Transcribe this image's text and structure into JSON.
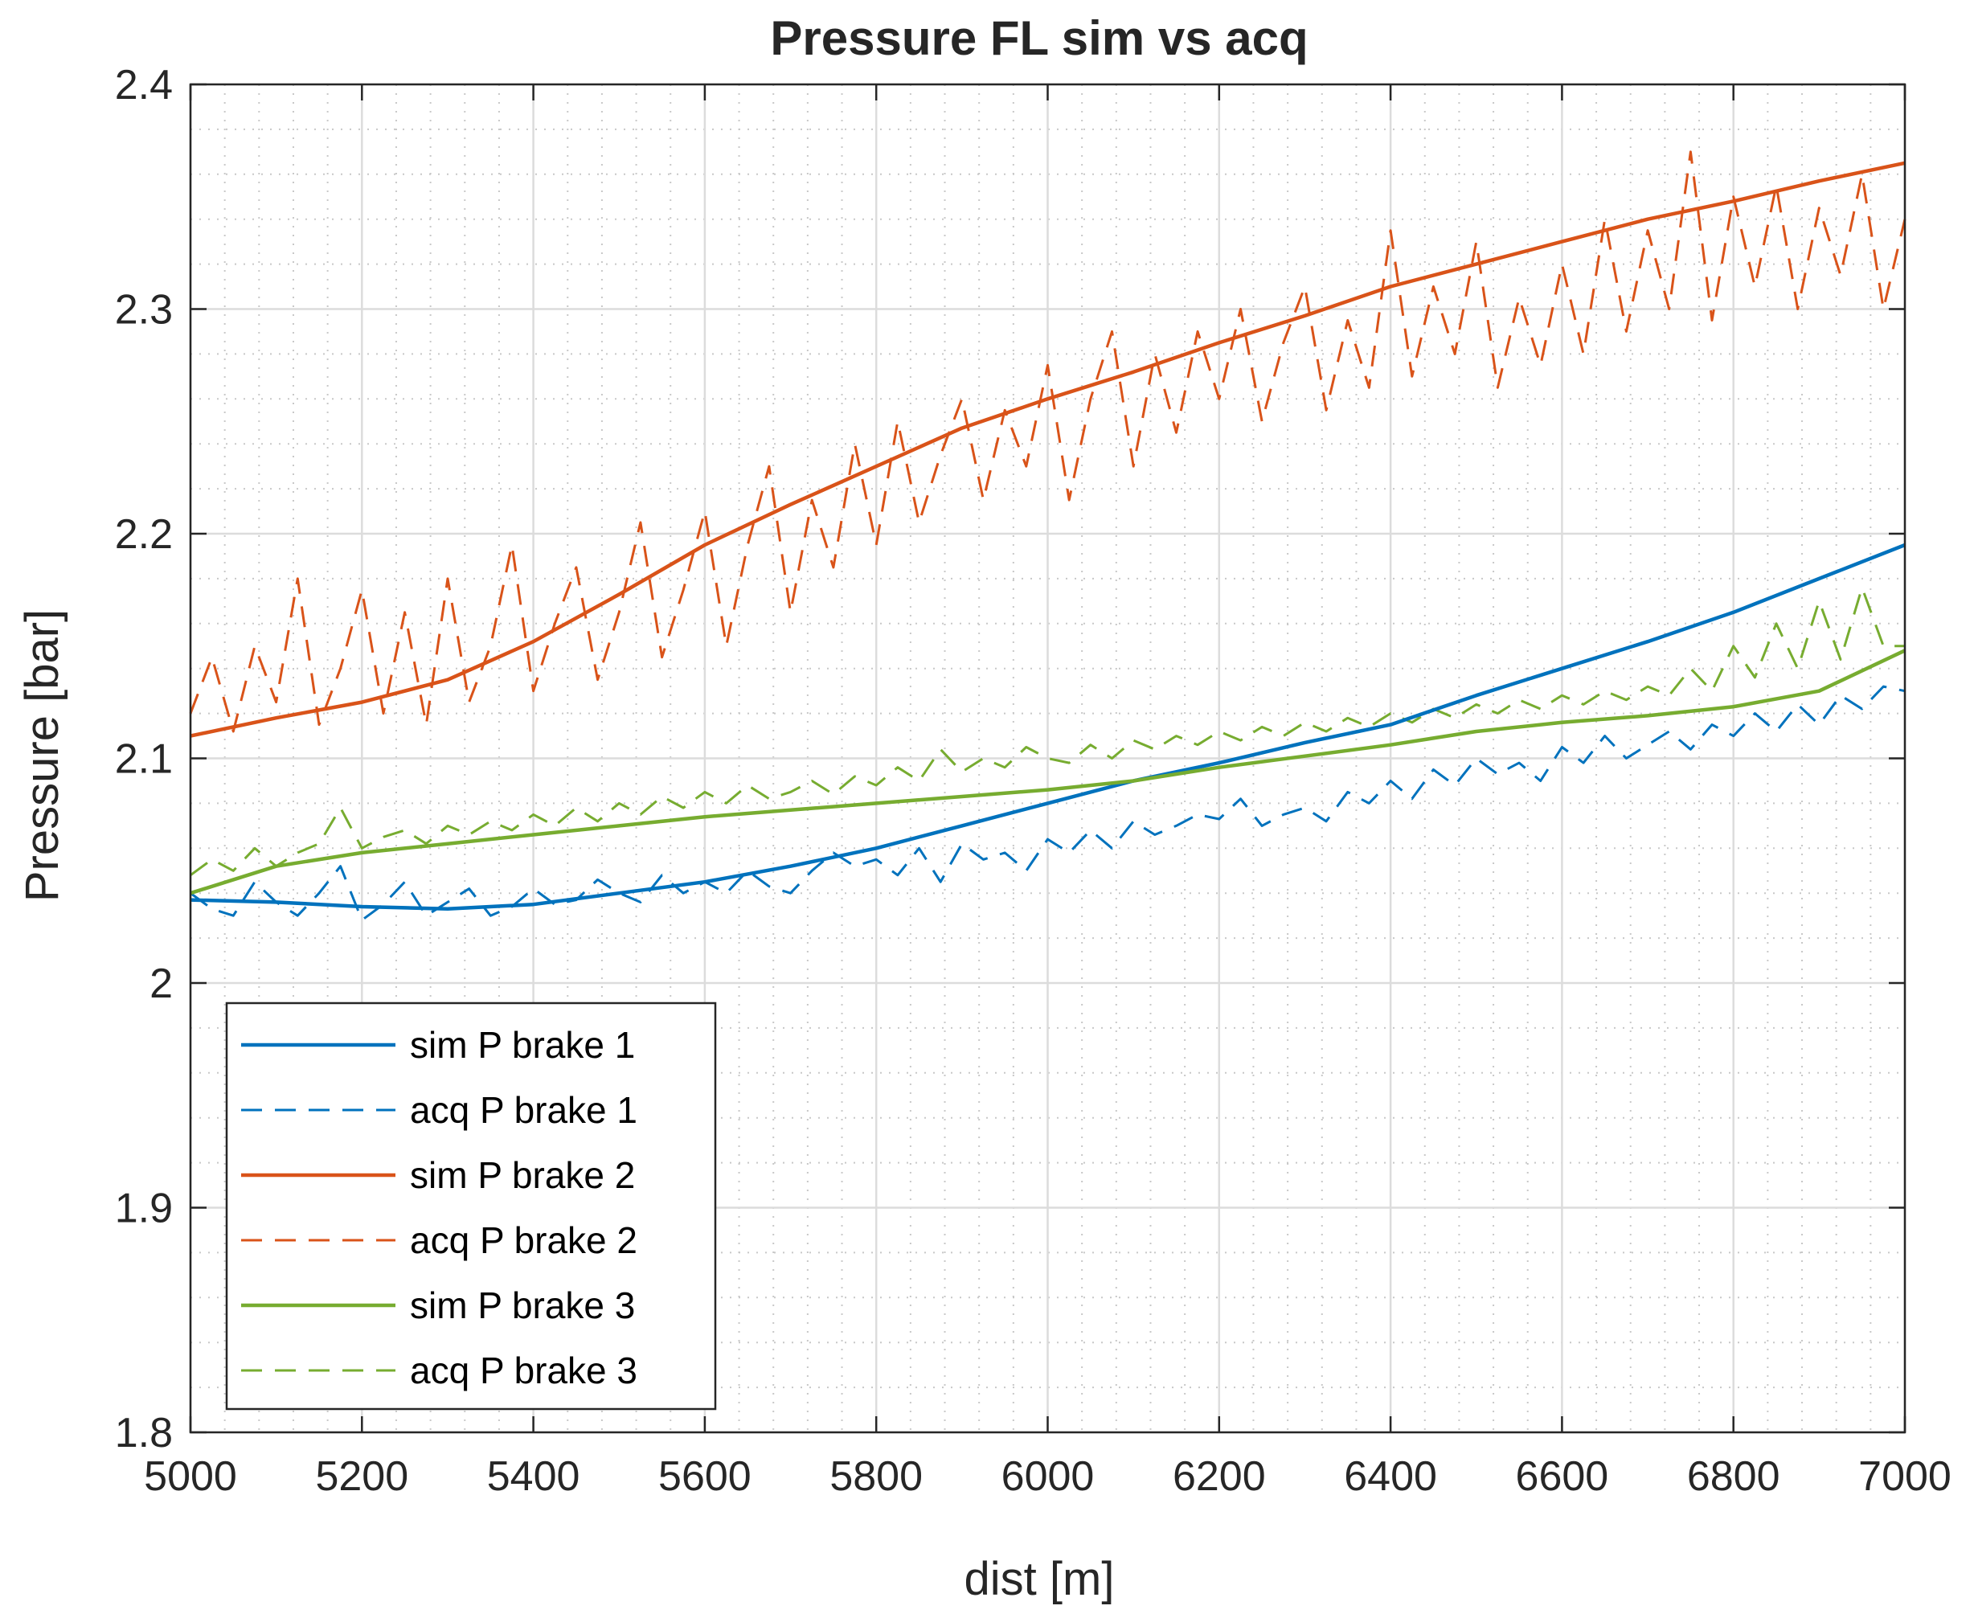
{
  "chart_data": {
    "type": "line",
    "title": "Pressure FL sim vs acq",
    "xlabel": "dist [m]",
    "ylabel": "Pressure [bar]",
    "xlim": [
      5000,
      7000
    ],
    "ylim": [
      1.8,
      2.4
    ],
    "xticks": [
      5000,
      5200,
      5400,
      5600,
      5800,
      6000,
      6200,
      6400,
      6600,
      6800,
      7000
    ],
    "xtick_labels": [
      "5000",
      "5200",
      "5400",
      "5600",
      "5800",
      "6000",
      "6200",
      "6400",
      "6600",
      "6800",
      "7000"
    ],
    "yticks": [
      1.8,
      1.9,
      2.0,
      2.1,
      2.2,
      2.3,
      2.4
    ],
    "ytick_labels": [
      "1.8",
      "1.9",
      "2",
      "2.1",
      "2.2",
      "2.3",
      "2.4"
    ],
    "grid": "major and minor",
    "legend_position": "bottom-left",
    "series": [
      {
        "name": "sim P brake 1",
        "style": "solid",
        "color": "#0072BD",
        "x": [
          5000,
          5100,
          5200,
          5300,
          5400,
          5500,
          5600,
          5700,
          5800,
          5900,
          6000,
          6100,
          6200,
          6300,
          6400,
          6500,
          6600,
          6700,
          6800,
          6900,
          7000
        ],
        "y": [
          2.037,
          2.036,
          2.034,
          2.033,
          2.035,
          2.04,
          2.045,
          2.052,
          2.06,
          2.07,
          2.08,
          2.09,
          2.098,
          2.107,
          2.115,
          2.128,
          2.14,
          2.152,
          2.165,
          2.18,
          2.195
        ]
      },
      {
        "name": "acq P brake 1",
        "style": "dashed",
        "color": "#0072BD",
        "x": [
          5000,
          5025,
          5050,
          5075,
          5100,
          5125,
          5150,
          5175,
          5200,
          5225,
          5250,
          5275,
          5300,
          5325,
          5350,
          5375,
          5400,
          5425,
          5450,
          5475,
          5500,
          5525,
          5550,
          5575,
          5600,
          5625,
          5650,
          5675,
          5700,
          5725,
          5750,
          5775,
          5800,
          5825,
          5850,
          5875,
          5900,
          5925,
          5950,
          5975,
          6000,
          6025,
          6050,
          6075,
          6100,
          6125,
          6150,
          6175,
          6200,
          6225,
          6250,
          6275,
          6300,
          6325,
          6350,
          6375,
          6400,
          6425,
          6450,
          6475,
          6500,
          6525,
          6550,
          6575,
          6600,
          6625,
          6650,
          6675,
          6700,
          6725,
          6750,
          6775,
          6800,
          6825,
          6850,
          6875,
          6900,
          6925,
          6950,
          6975,
          7000
        ],
        "y": [
          2.04,
          2.033,
          2.03,
          2.045,
          2.036,
          2.03,
          2.04,
          2.052,
          2.028,
          2.035,
          2.045,
          2.03,
          2.036,
          2.042,
          2.03,
          2.034,
          2.042,
          2.035,
          2.037,
          2.046,
          2.04,
          2.036,
          2.048,
          2.04,
          2.045,
          2.04,
          2.05,
          2.043,
          2.04,
          2.05,
          2.058,
          2.052,
          2.055,
          2.048,
          2.06,
          2.045,
          2.062,
          2.055,
          2.058,
          2.05,
          2.064,
          2.058,
          2.068,
          2.06,
          2.072,
          2.066,
          2.07,
          2.075,
          2.073,
          2.082,
          2.07,
          2.075,
          2.078,
          2.072,
          2.085,
          2.08,
          2.09,
          2.082,
          2.095,
          2.088,
          2.1,
          2.093,
          2.098,
          2.09,
          2.105,
          2.098,
          2.11,
          2.1,
          2.106,
          2.112,
          2.104,
          2.115,
          2.11,
          2.12,
          2.112,
          2.124,
          2.115,
          2.128,
          2.122,
          2.132,
          2.13
        ]
      },
      {
        "name": "sim P brake 2",
        "style": "solid",
        "color": "#D95319",
        "x": [
          5000,
          5100,
          5200,
          5300,
          5400,
          5500,
          5600,
          5700,
          5800,
          5900,
          6000,
          6100,
          6200,
          6300,
          6400,
          6500,
          6600,
          6700,
          6800,
          6900,
          7000
        ],
        "y": [
          2.11,
          2.118,
          2.125,
          2.135,
          2.152,
          2.173,
          2.195,
          2.213,
          2.23,
          2.247,
          2.26,
          2.272,
          2.285,
          2.297,
          2.31,
          2.32,
          2.33,
          2.34,
          2.348,
          2.357,
          2.365
        ]
      },
      {
        "name": "acq P brake 2",
        "style": "dashed",
        "color": "#D95319",
        "x": [
          5000,
          5025,
          5050,
          5075,
          5100,
          5125,
          5150,
          5175,
          5200,
          5225,
          5250,
          5275,
          5300,
          5325,
          5350,
          5375,
          5400,
          5425,
          5450,
          5475,
          5500,
          5525,
          5550,
          5575,
          5600,
          5625,
          5650,
          5675,
          5700,
          5725,
          5750,
          5775,
          5800,
          5825,
          5850,
          5875,
          5900,
          5925,
          5950,
          5975,
          6000,
          6025,
          6050,
          6075,
          6100,
          6125,
          6150,
          6175,
          6200,
          6225,
          6250,
          6275,
          6300,
          6325,
          6350,
          6375,
          6400,
          6425,
          6450,
          6475,
          6500,
          6525,
          6550,
          6575,
          6600,
          6625,
          6650,
          6675,
          6700,
          6725,
          6750,
          6775,
          6800,
          6825,
          6850,
          6875,
          6900,
          6925,
          6950,
          6975,
          7000
        ],
        "y": [
          2.12,
          2.145,
          2.112,
          2.15,
          2.125,
          2.18,
          2.115,
          2.14,
          2.175,
          2.12,
          2.165,
          2.115,
          2.18,
          2.125,
          2.15,
          2.195,
          2.13,
          2.16,
          2.185,
          2.135,
          2.165,
          2.205,
          2.145,
          2.175,
          2.21,
          2.15,
          2.195,
          2.23,
          2.165,
          2.215,
          2.185,
          2.24,
          2.195,
          2.25,
          2.205,
          2.235,
          2.26,
          2.215,
          2.255,
          2.23,
          2.275,
          2.215,
          2.26,
          2.29,
          2.23,
          2.28,
          2.245,
          2.29,
          2.26,
          2.3,
          2.25,
          2.285,
          2.31,
          2.255,
          2.295,
          2.265,
          2.335,
          2.27,
          2.31,
          2.28,
          2.33,
          2.265,
          2.305,
          2.275,
          2.32,
          2.28,
          2.34,
          2.29,
          2.335,
          2.3,
          2.37,
          2.295,
          2.35,
          2.31,
          2.355,
          2.3,
          2.345,
          2.315,
          2.36,
          2.3,
          2.34
        ]
      },
      {
        "name": "sim P brake 3",
        "style": "solid",
        "color": "#77AC30",
        "x": [
          5000,
          5100,
          5200,
          5300,
          5400,
          5500,
          5600,
          5700,
          5800,
          5900,
          6000,
          6100,
          6200,
          6300,
          6400,
          6500,
          6600,
          6700,
          6800,
          6900,
          7000
        ],
        "y": [
          2.04,
          2.052,
          2.058,
          2.062,
          2.066,
          2.07,
          2.074,
          2.077,
          2.08,
          2.083,
          2.086,
          2.09,
          2.096,
          2.101,
          2.106,
          2.112,
          2.116,
          2.119,
          2.123,
          2.13,
          2.148
        ]
      },
      {
        "name": "acq P brake 3",
        "style": "dashed",
        "color": "#77AC30",
        "x": [
          5000,
          5025,
          5050,
          5075,
          5100,
          5125,
          5150,
          5175,
          5200,
          5225,
          5250,
          5275,
          5300,
          5325,
          5350,
          5375,
          5400,
          5425,
          5450,
          5475,
          5500,
          5525,
          5550,
          5575,
          5600,
          5625,
          5650,
          5675,
          5700,
          5725,
          5750,
          5775,
          5800,
          5825,
          5850,
          5875,
          5900,
          5925,
          5950,
          5975,
          6000,
          6025,
          6050,
          6075,
          6100,
          6125,
          6150,
          6175,
          6200,
          6225,
          6250,
          6275,
          6300,
          6325,
          6350,
          6375,
          6400,
          6425,
          6450,
          6475,
          6500,
          6525,
          6550,
          6575,
          6600,
          6625,
          6650,
          6675,
          6700,
          6725,
          6750,
          6775,
          6800,
          6825,
          6850,
          6875,
          6900,
          6925,
          6950,
          6975,
          7000
        ],
        "y": [
          2.048,
          2.055,
          2.05,
          2.06,
          2.052,
          2.058,
          2.062,
          2.078,
          2.06,
          2.065,
          2.068,
          2.062,
          2.07,
          2.066,
          2.072,
          2.068,
          2.075,
          2.07,
          2.078,
          2.072,
          2.08,
          2.075,
          2.083,
          2.078,
          2.085,
          2.08,
          2.088,
          2.082,
          2.085,
          2.09,
          2.084,
          2.092,
          2.088,
          2.096,
          2.09,
          2.104,
          2.094,
          2.1,
          2.096,
          2.105,
          2.1,
          2.098,
          2.106,
          2.1,
          2.108,
          2.104,
          2.11,
          2.106,
          2.112,
          2.108,
          2.114,
          2.11,
          2.116,
          2.112,
          2.118,
          2.114,
          2.12,
          2.116,
          2.122,
          2.118,
          2.124,
          2.12,
          2.126,
          2.122,
          2.128,
          2.124,
          2.13,
          2.126,
          2.132,
          2.128,
          2.14,
          2.13,
          2.15,
          2.136,
          2.16,
          2.14,
          2.17,
          2.144,
          2.176,
          2.15,
          2.15
        ]
      }
    ]
  }
}
